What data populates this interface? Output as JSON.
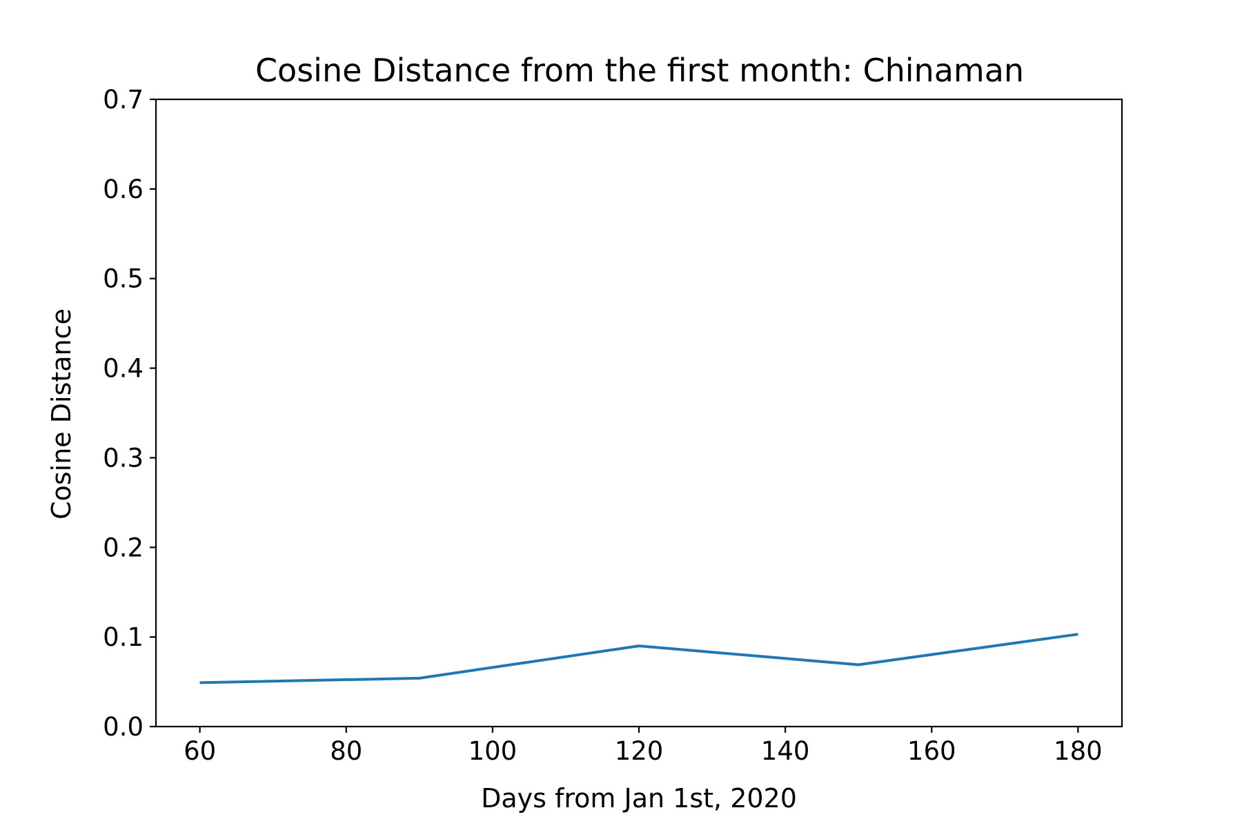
{
  "chart_data": {
    "type": "line",
    "title": "Cosine Distance from the first month: Chinaman",
    "xlabel": "Days from Jan 1st, 2020",
    "ylabel": "Cosine Distance",
    "xlim": [
      54,
      186
    ],
    "ylim": [
      0.0,
      0.7
    ],
    "xticks": [
      60,
      80,
      100,
      120,
      140,
      160,
      180
    ],
    "xtick_labels": [
      "60",
      "80",
      "100",
      "120",
      "140",
      "160",
      "180"
    ],
    "yticks": [
      0.0,
      0.1,
      0.2,
      0.3,
      0.4,
      0.5,
      0.6,
      0.7
    ],
    "ytick_labels": [
      "0.0",
      "0.1",
      "0.2",
      "0.3",
      "0.4",
      "0.5",
      "0.6",
      "0.7"
    ],
    "grid": false,
    "series": [
      {
        "color": "#1f77b4",
        "x": [
          60,
          90,
          120,
          150,
          180
        ],
        "y": [
          0.049,
          0.054,
          0.09,
          0.069,
          0.103
        ]
      }
    ]
  }
}
